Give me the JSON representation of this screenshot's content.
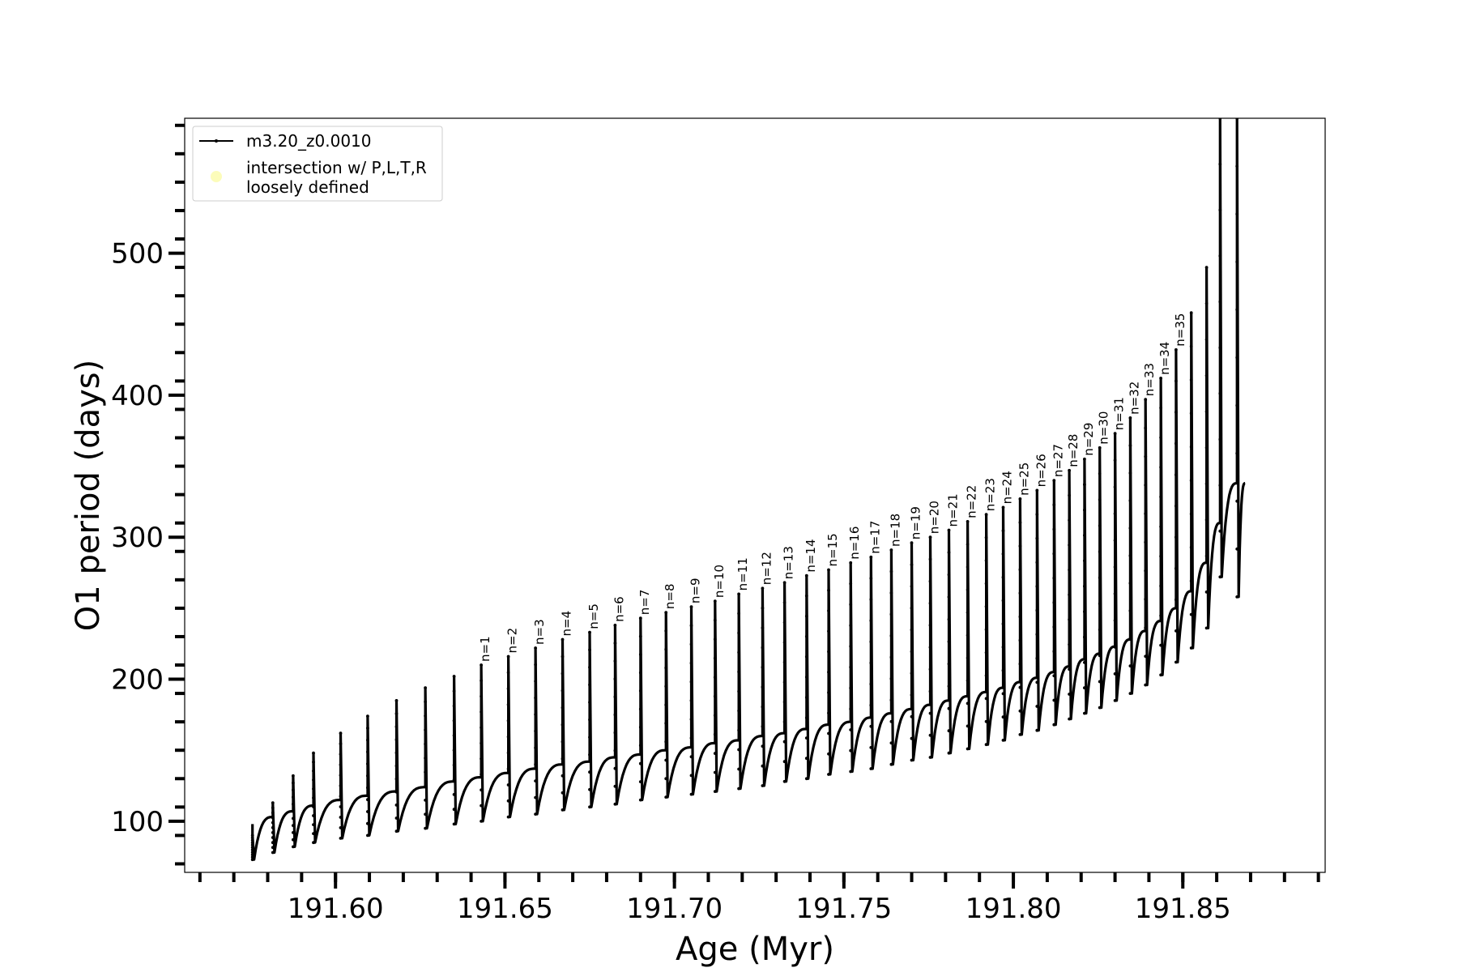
{
  "chart_data": {
    "type": "line",
    "xlabel": "Age (Myr)",
    "ylabel": "O1 period (days)",
    "xlim": [
      191.5555,
      191.892
    ],
    "ylim": [
      64,
      595
    ],
    "x_ticks": [
      "191.60",
      "191.65",
      "191.70",
      "191.75",
      "191.80",
      "191.85"
    ],
    "x_tick_values": [
      191.6,
      191.65,
      191.7,
      191.75,
      191.8,
      191.85
    ],
    "y_ticks": [
      "100",
      "200",
      "300",
      "400",
      "500"
    ],
    "y_tick_values": [
      100,
      200,
      300,
      400,
      500
    ],
    "legend": {
      "placement": "upper-left",
      "entries": [
        {
          "label": "m3.20_z0.0010",
          "marker": "line-with-dots",
          "color": "#000000"
        },
        {
          "label": "intersection w/ P,L,T,R\nloosely defined",
          "marker": "circle",
          "color": "#fcfcba"
        }
      ]
    },
    "series": [
      {
        "name": "m3.20_z0.0010",
        "color": "#000000",
        "pulses": [
          {
            "x": 191.5755,
            "peak": 90,
            "base_low": 73,
            "baseline": 98
          },
          {
            "x": 191.5815,
            "peak": 113,
            "base_low": 78,
            "baseline": 103
          },
          {
            "x": 191.5875,
            "peak": 132,
            "base_low": 82,
            "baseline": 107
          },
          {
            "x": 191.5935,
            "peak": 148,
            "base_low": 85,
            "baseline": 111
          },
          {
            "x": 191.6015,
            "peak": 162,
            "base_low": 88,
            "baseline": 115
          },
          {
            "x": 191.6095,
            "peak": 174,
            "base_low": 90,
            "baseline": 118
          },
          {
            "x": 191.618,
            "peak": 185,
            "base_low": 93,
            "baseline": 121
          },
          {
            "x": 191.6265,
            "peak": 194,
            "base_low": 95,
            "baseline": 124
          },
          {
            "x": 191.635,
            "peak": 202,
            "base_low": 98,
            "baseline": 128
          },
          {
            "x": 191.643,
            "peak": 210,
            "base_low": 100,
            "baseline": 131,
            "label": "n=1"
          },
          {
            "x": 191.651,
            "peak": 216,
            "base_low": 103,
            "baseline": 134,
            "label": "n=2"
          },
          {
            "x": 191.659,
            "peak": 222,
            "base_low": 105,
            "baseline": 137,
            "label": "n=3"
          },
          {
            "x": 191.667,
            "peak": 228,
            "base_low": 108,
            "baseline": 140,
            "label": "n=4"
          },
          {
            "x": 191.675,
            "peak": 233,
            "base_low": 110,
            "baseline": 142,
            "label": "n=5"
          },
          {
            "x": 191.6825,
            "peak": 238,
            "base_low": 112,
            "baseline": 145,
            "label": "n=6"
          },
          {
            "x": 191.69,
            "peak": 243,
            "base_low": 115,
            "baseline": 147,
            "label": "n=7"
          },
          {
            "x": 191.6975,
            "peak": 247,
            "base_low": 117,
            "baseline": 150,
            "label": "n=8"
          },
          {
            "x": 191.705,
            "peak": 251,
            "base_low": 119,
            "baseline": 152,
            "label": "n=9"
          },
          {
            "x": 191.712,
            "peak": 255,
            "base_low": 121,
            "baseline": 155,
            "label": "n=10"
          },
          {
            "x": 191.719,
            "peak": 260,
            "base_low": 123,
            "baseline": 157,
            "label": "n=11"
          },
          {
            "x": 191.726,
            "peak": 264,
            "base_low": 125,
            "baseline": 160,
            "label": "n=12"
          },
          {
            "x": 191.7325,
            "peak": 268,
            "base_low": 128,
            "baseline": 162,
            "label": "n=13"
          },
          {
            "x": 191.739,
            "peak": 273,
            "base_low": 130,
            "baseline": 165,
            "label": "n=14"
          },
          {
            "x": 191.7455,
            "peak": 277,
            "base_low": 133,
            "baseline": 168,
            "label": "n=15"
          },
          {
            "x": 191.752,
            "peak": 282,
            "base_low": 135,
            "baseline": 170,
            "label": "n=16"
          },
          {
            "x": 191.758,
            "peak": 286,
            "base_low": 137,
            "baseline": 173,
            "label": "n=17"
          },
          {
            "x": 191.764,
            "peak": 291,
            "base_low": 140,
            "baseline": 176,
            "label": "n=18"
          },
          {
            "x": 191.77,
            "peak": 296,
            "base_low": 143,
            "baseline": 179,
            "label": "n=19"
          },
          {
            "x": 191.7755,
            "peak": 300,
            "base_low": 145,
            "baseline": 182,
            "label": "n=20"
          },
          {
            "x": 191.781,
            "peak": 305,
            "base_low": 148,
            "baseline": 185,
            "label": "n=21"
          },
          {
            "x": 191.7865,
            "peak": 311,
            "base_low": 151,
            "baseline": 188,
            "label": "n=22"
          },
          {
            "x": 191.792,
            "peak": 316,
            "base_low": 154,
            "baseline": 191,
            "label": "n=23"
          },
          {
            "x": 191.797,
            "peak": 321,
            "base_low": 157,
            "baseline": 194,
            "label": "n=24"
          },
          {
            "x": 191.802,
            "peak": 327,
            "base_low": 161,
            "baseline": 198,
            "label": "n=25"
          },
          {
            "x": 191.807,
            "peak": 333,
            "base_low": 164,
            "baseline": 201,
            "label": "n=26"
          },
          {
            "x": 191.812,
            "peak": 340,
            "base_low": 168,
            "baseline": 205,
            "label": "n=27"
          },
          {
            "x": 191.8165,
            "peak": 347,
            "base_low": 172,
            "baseline": 209,
            "label": "n=28"
          },
          {
            "x": 191.821,
            "peak": 355,
            "base_low": 176,
            "baseline": 214,
            "label": "n=29"
          },
          {
            "x": 191.8255,
            "peak": 363,
            "base_low": 180,
            "baseline": 218,
            "label": "n=30"
          },
          {
            "x": 191.83,
            "peak": 373,
            "base_low": 185,
            "baseline": 223,
            "label": "n=31"
          },
          {
            "x": 191.8345,
            "peak": 384,
            "base_low": 190,
            "baseline": 228,
            "label": "n=32"
          },
          {
            "x": 191.839,
            "peak": 397,
            "base_low": 196,
            "baseline": 234,
            "label": "n=33"
          },
          {
            "x": 191.8435,
            "peak": 412,
            "base_low": 203,
            "baseline": 241,
            "label": "n=34"
          },
          {
            "x": 191.848,
            "peak": 432,
            "base_low": 212,
            "baseline": 250,
            "label": "n=35"
          },
          {
            "x": 191.8525,
            "peak": 458,
            "base_low": 222,
            "baseline": 262
          },
          {
            "x": 191.857,
            "peak": 490,
            "base_low": 236,
            "baseline": 282
          },
          {
            "x": 191.861,
            "peak": 595,
            "base_low": 272,
            "baseline": 310
          },
          {
            "x": 191.866,
            "peak": 595,
            "base_low": 258,
            "baseline": 338
          }
        ]
      }
    ]
  }
}
